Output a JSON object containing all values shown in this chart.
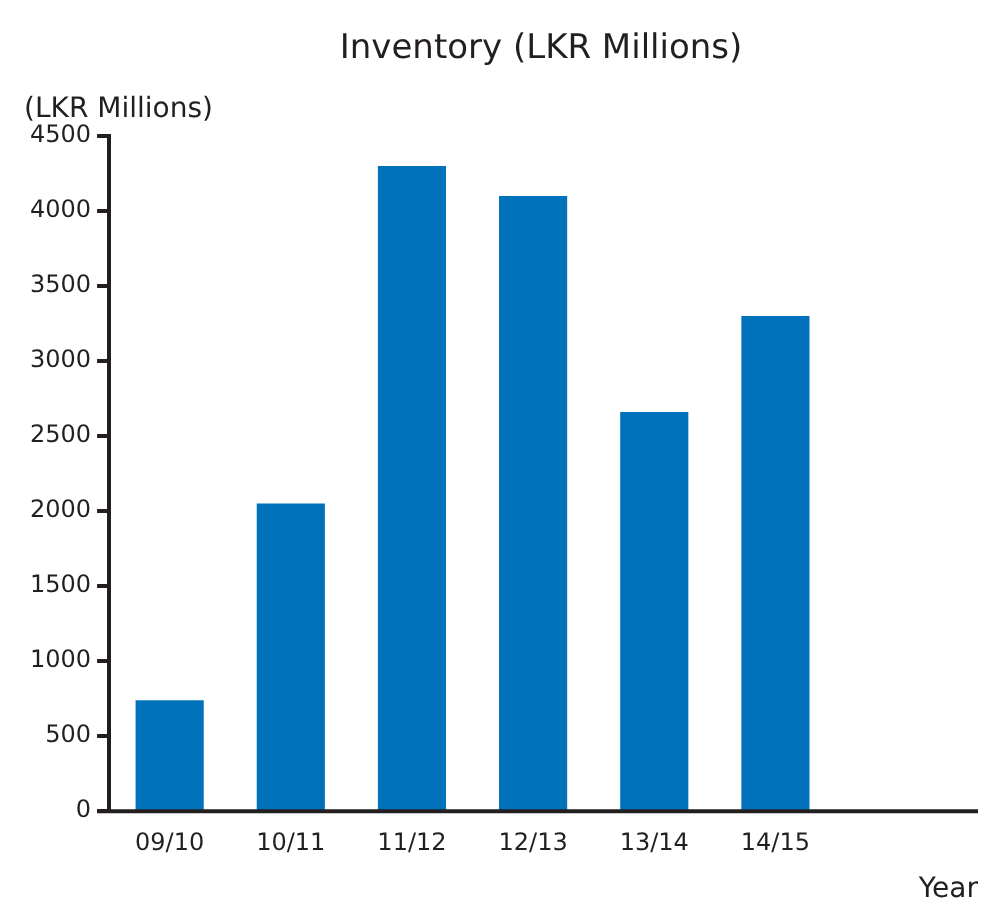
{
  "chart_data": {
    "type": "bar",
    "title": "Inventory (LKR Millions)",
    "ylabel": "(LKR Millions)",
    "xlabel": "Year",
    "categories": [
      "09/10",
      "10/11",
      "11/12",
      "12/13",
      "13/14",
      "14/15"
    ],
    "values": [
      740,
      2050,
      4300,
      4100,
      2660,
      3300
    ],
    "color": "#0072bc",
    "ylim": [
      0,
      4500
    ],
    "yticks": [
      0,
      500,
      1000,
      1500,
      2000,
      2500,
      3000,
      3500,
      4000,
      4500
    ],
    "grid": false,
    "legend": false
  }
}
